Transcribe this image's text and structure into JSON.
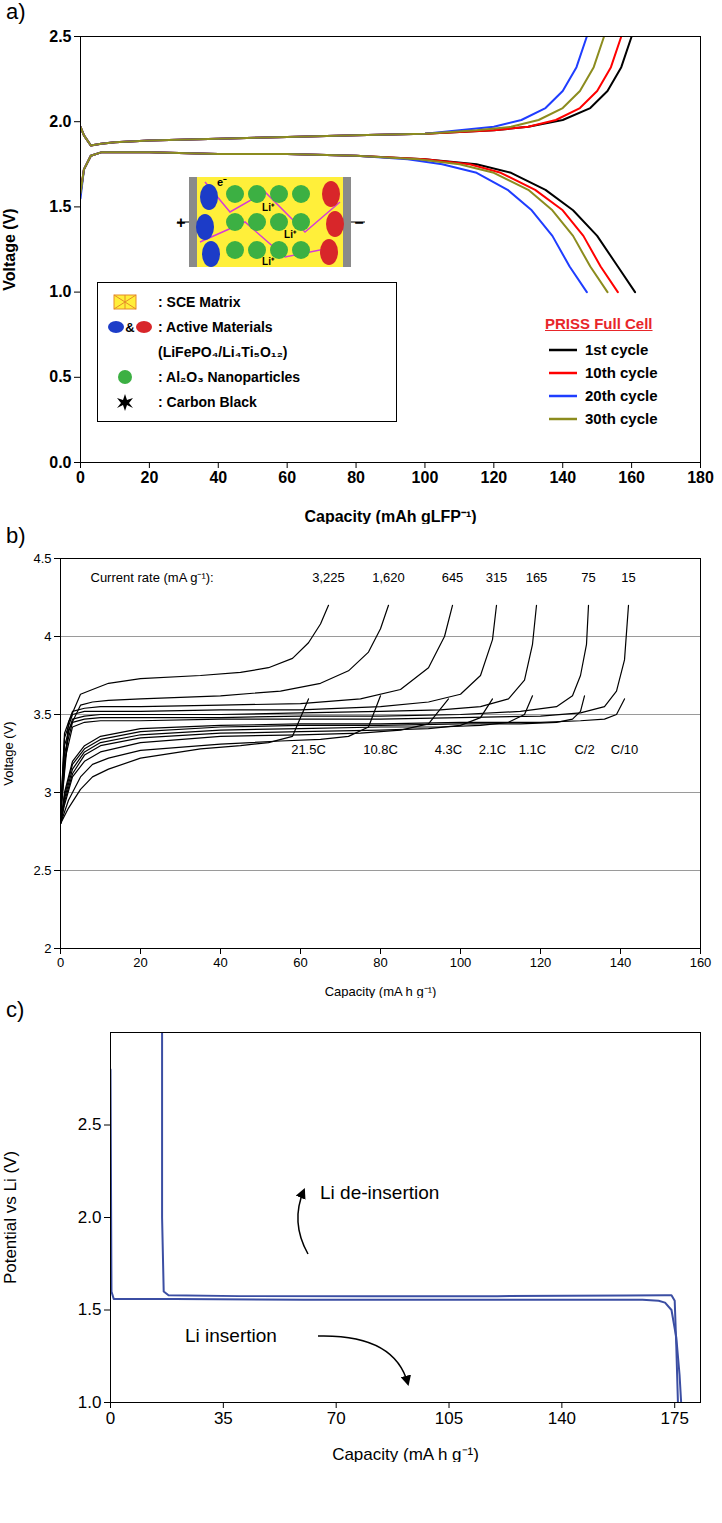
{
  "chart_data": [
    {
      "panel_label": "a)",
      "type": "line",
      "x_label": "Capacity (mAh gLFP⁻¹)",
      "y_label": "Voltage (V)",
      "xlim": [
        0,
        180
      ],
      "xticks": [
        0,
        20,
        40,
        60,
        80,
        100,
        120,
        140,
        160,
        180
      ],
      "ylim": [
        0,
        2.5
      ],
      "yticks": [
        {
          "value": 0,
          "label": "0.0"
        },
        {
          "value": 0.5,
          "label": "0.5"
        },
        {
          "value": 1,
          "label": "1.0"
        },
        {
          "value": 1.5,
          "label": "1.5"
        },
        {
          "value": 2,
          "label": "2.0"
        },
        {
          "value": 2.5,
          "label": "2.5"
        }
      ],
      "grid": false,
      "legend": "lower right",
      "legend_title": "PRISS Full Cell",
      "inset_key": [
        ": SCE Matrix",
        ": Active Materials",
        "(LiFePO₄/Li₄Ti₅O₁₂)",
        ": Al₂O₃ Nanoparticles",
        ": Carbon Black"
      ],
      "schematic_labels": {
        "electron": "e⁻",
        "ion": "Li⁺",
        "positive": "+",
        "negative": "−",
        "and_sign": "&"
      },
      "series": [
        {
          "name": "1st cycle",
          "color": "#000000",
          "x": [
            0,
            1,
            3,
            6,
            10,
            20,
            40,
            60,
            80,
            100,
            120,
            130,
            140,
            148,
            153,
            157,
            160,
            null,
            0,
            1,
            3,
            6,
            10,
            20,
            40,
            60,
            80,
            100,
            115,
            125,
            135,
            143,
            150,
            156,
            161
          ],
          "values": [
            1.97,
            1.92,
            1.86,
            1.87,
            1.88,
            1.89,
            1.9,
            1.91,
            1.92,
            1.93,
            1.95,
            1.97,
            2.01,
            2.08,
            2.18,
            2.32,
            2.5,
            null,
            1.58,
            1.72,
            1.8,
            1.82,
            1.82,
            1.82,
            1.81,
            1.81,
            1.8,
            1.78,
            1.75,
            1.7,
            1.6,
            1.48,
            1.33,
            1.15,
            1.0
          ]
        },
        {
          "name": "10th cycle",
          "color": "#ff0000",
          "x": [
            0,
            1,
            3,
            6,
            10,
            20,
            40,
            60,
            80,
            100,
            120,
            130,
            138,
            145,
            150,
            154,
            157,
            null,
            0,
            1,
            3,
            6,
            10,
            20,
            40,
            60,
            80,
            100,
            113,
            122,
            132,
            140,
            146,
            151,
            156
          ],
          "values": [
            1.97,
            1.92,
            1.86,
            1.87,
            1.88,
            1.89,
            1.9,
            1.91,
            1.92,
            1.93,
            1.95,
            1.97,
            2.01,
            2.08,
            2.18,
            2.32,
            2.5,
            null,
            1.58,
            1.72,
            1.8,
            1.82,
            1.82,
            1.82,
            1.81,
            1.81,
            1.8,
            1.78,
            1.75,
            1.7,
            1.6,
            1.48,
            1.33,
            1.15,
            1.0
          ]
        },
        {
          "name": "20th cycle",
          "color": "#1f3dff",
          "x": [
            0,
            1,
            3,
            6,
            10,
            20,
            40,
            60,
            80,
            100,
            110,
            120,
            128,
            135,
            140,
            144,
            147,
            null,
            0,
            1,
            3,
            6,
            10,
            20,
            40,
            60,
            80,
            95,
            105,
            115,
            124,
            131,
            137,
            142,
            147
          ],
          "values": [
            1.97,
            1.92,
            1.86,
            1.87,
            1.88,
            1.89,
            1.9,
            1.91,
            1.92,
            1.93,
            1.95,
            1.97,
            2.01,
            2.08,
            2.18,
            2.32,
            2.5,
            null,
            1.55,
            1.72,
            1.8,
            1.82,
            1.82,
            1.82,
            1.81,
            1.81,
            1.8,
            1.78,
            1.75,
            1.7,
            1.6,
            1.48,
            1.33,
            1.15,
            1.0
          ]
        },
        {
          "name": "30th cycle",
          "color": "#8c8c1e",
          "x": [
            0,
            1,
            3,
            6,
            10,
            20,
            40,
            60,
            80,
            100,
            115,
            125,
            133,
            140,
            145,
            149,
            152,
            null,
            0,
            1,
            3,
            6,
            10,
            20,
            40,
            60,
            80,
            98,
            110,
            120,
            130,
            137,
            143,
            148,
            153
          ],
          "values": [
            1.97,
            1.92,
            1.86,
            1.87,
            1.88,
            1.89,
            1.9,
            1.91,
            1.92,
            1.93,
            1.95,
            1.97,
            2.01,
            2.08,
            2.18,
            2.32,
            2.5,
            null,
            1.58,
            1.72,
            1.8,
            1.82,
            1.82,
            1.82,
            1.81,
            1.81,
            1.8,
            1.78,
            1.75,
            1.7,
            1.6,
            1.48,
            1.33,
            1.15,
            1.0
          ]
        }
      ]
    },
    {
      "panel_label": "b)",
      "type": "line",
      "x_label": "Capacity (mA h g⁻¹)",
      "y_label": "Voltage (V)",
      "xlim": [
        0,
        160
      ],
      "xticks": [
        0,
        20,
        40,
        60,
        80,
        100,
        120,
        140,
        160
      ],
      "ylim": [
        2,
        4.5
      ],
      "yticks": [
        2,
        2.5,
        3,
        3.5,
        4,
        4.5
      ],
      "grid": true,
      "color": "#000000",
      "rate_heading": "Current rate (mA g⁻¹):",
      "series": [
        {
          "name": "21.5C",
          "current_rate": {
            "value": 3225,
            "label": "3,225"
          },
          "x": [
            0,
            2,
            5,
            8,
            12,
            20,
            35,
            45,
            52,
            58,
            62,
            65,
            67,
            null,
            0,
            2,
            5,
            8,
            12,
            20,
            35,
            45,
            52,
            58,
            62
          ],
          "values": [
            2.85,
            3.45,
            3.63,
            3.66,
            3.7,
            3.73,
            3.75,
            3.77,
            3.8,
            3.86,
            3.96,
            4.08,
            4.2,
            null,
            2.8,
            2.9,
            3.02,
            3.1,
            3.15,
            3.22,
            3.28,
            3.3,
            3.32,
            3.36,
            3.6
          ]
        },
        {
          "name": "10.8C",
          "current_rate": {
            "value": 1620,
            "label": "1,620"
          },
          "x": [
            0,
            2,
            5,
            8,
            12,
            20,
            40,
            55,
            65,
            72,
            77,
            80,
            82,
            null,
            0,
            2,
            5,
            8,
            12,
            20,
            40,
            55,
            65,
            72,
            77,
            80
          ],
          "values": [
            2.85,
            3.4,
            3.56,
            3.58,
            3.59,
            3.6,
            3.62,
            3.65,
            3.7,
            3.78,
            3.9,
            4.05,
            4.2,
            null,
            2.8,
            2.95,
            3.1,
            3.18,
            3.22,
            3.27,
            3.31,
            3.33,
            3.34,
            3.36,
            3.42,
            3.62
          ]
        },
        {
          "name": "4.3C",
          "current_rate": 645,
          "x": [
            0,
            1,
            3,
            6,
            10,
            20,
            40,
            60,
            75,
            85,
            92,
            96,
            98,
            null,
            0,
            1,
            3,
            6,
            10,
            20,
            40,
            60,
            75,
            85,
            92,
            97
          ],
          "values": [
            2.85,
            3.38,
            3.52,
            3.54,
            3.55,
            3.55,
            3.56,
            3.57,
            3.6,
            3.66,
            3.8,
            4.0,
            4.2,
            null,
            2.8,
            2.92,
            3.1,
            3.2,
            3.26,
            3.32,
            3.36,
            3.37,
            3.38,
            3.4,
            3.44,
            3.6
          ]
        },
        {
          "name": "2.1C",
          "current_rate": 315,
          "x": [
            0,
            1,
            3,
            6,
            10,
            20,
            40,
            60,
            80,
            92,
            100,
            105,
            108,
            109,
            null,
            0,
            1,
            3,
            6,
            10,
            20,
            40,
            60,
            80,
            92,
            100,
            105,
            108
          ],
          "values": [
            2.85,
            3.35,
            3.5,
            3.52,
            3.52,
            3.52,
            3.53,
            3.53,
            3.55,
            3.58,
            3.63,
            3.75,
            3.98,
            4.2,
            null,
            2.8,
            2.94,
            3.12,
            3.24,
            3.3,
            3.35,
            3.38,
            3.39,
            3.4,
            3.41,
            3.43,
            3.48,
            3.6
          ]
        },
        {
          "name": "1.1C",
          "current_rate": 165,
          "x": [
            0,
            1,
            3,
            6,
            10,
            20,
            40,
            60,
            80,
            95,
            105,
            112,
            116,
            118,
            119,
            null,
            0,
            1,
            3,
            6,
            10,
            20,
            40,
            60,
            80,
            95,
            105,
            112,
            116,
            118
          ],
          "values": [
            2.85,
            3.3,
            3.47,
            3.49,
            3.5,
            3.5,
            3.5,
            3.51,
            3.52,
            3.53,
            3.55,
            3.6,
            3.72,
            3.95,
            4.2,
            null,
            2.8,
            2.96,
            3.15,
            3.26,
            3.32,
            3.37,
            3.4,
            3.41,
            3.42,
            3.42,
            3.43,
            3.45,
            3.5,
            3.62
          ]
        },
        {
          "name": "C/2",
          "current_rate": 75,
          "x": [
            0,
            1,
            3,
            6,
            10,
            20,
            40,
            60,
            80,
            100,
            115,
            124,
            128,
            130,
            131.5,
            132,
            null,
            0,
            1,
            3,
            6,
            10,
            20,
            40,
            60,
            80,
            100,
            115,
            124,
            128,
            130,
            131
          ],
          "values": [
            2.85,
            3.25,
            3.45,
            3.47,
            3.48,
            3.48,
            3.48,
            3.49,
            3.49,
            3.5,
            3.52,
            3.55,
            3.62,
            3.75,
            3.95,
            4.2,
            null,
            2.8,
            2.98,
            3.18,
            3.28,
            3.34,
            3.39,
            3.42,
            3.43,
            3.43,
            3.44,
            3.44,
            3.45,
            3.47,
            3.52,
            3.62
          ]
        },
        {
          "name": "C/10",
          "current_rate": 15,
          "x": [
            0,
            1,
            3,
            6,
            10,
            20,
            40,
            60,
            80,
            100,
            120,
            130,
            136,
            139,
            141,
            142,
            null,
            0,
            1,
            3,
            6,
            10,
            20,
            40,
            60,
            80,
            100,
            120,
            130,
            136,
            139,
            141
          ],
          "values": [
            2.85,
            3.2,
            3.42,
            3.45,
            3.46,
            3.46,
            3.47,
            3.47,
            3.47,
            3.48,
            3.49,
            3.51,
            3.55,
            3.65,
            3.85,
            4.2,
            null,
            2.8,
            3.0,
            3.2,
            3.3,
            3.36,
            3.41,
            3.43,
            3.44,
            3.44,
            3.45,
            3.45,
            3.46,
            3.47,
            3.5,
            3.6
          ]
        }
      ]
    },
    {
      "panel_label": "c)",
      "type": "line",
      "x_label": "Capacity (mA h g⁻¹)",
      "y_label": "Potential vs Li (V)",
      "xlim": [
        0,
        183
      ],
      "xticks": [
        0,
        35,
        70,
        105,
        140,
        175
      ],
      "ylim": [
        1,
        3
      ],
      "yticks": [
        {
          "value": 1,
          "label": "1.0"
        },
        {
          "value": 1.5,
          "label": "1.5"
        },
        {
          "value": 2,
          "label": "2.0"
        },
        {
          "value": 2.5,
          "label": "2.5"
        }
      ],
      "grid": false,
      "color": "#3b4ea3",
      "annotations": [
        "Li de-insertion",
        "Li insertion"
      ],
      "series": [
        {
          "x": [
            0,
            0.3,
            1,
            20,
            60,
            100,
            140,
            165,
            170,
            172,
            174,
            175.5,
            176.5,
            177
          ],
          "values": [
            2.8,
            1.6,
            1.56,
            1.56,
            1.555,
            1.555,
            1.555,
            1.555,
            1.55,
            1.54,
            1.5,
            1.35,
            1.15,
            1.0
          ]
        },
        {
          "x": [
            16,
            16,
            16.5,
            18,
            40,
            80,
            120,
            160,
            172,
            174,
            175,
            175.5,
            176
          ],
          "values": [
            3.0,
            2.0,
            1.6,
            1.58,
            1.575,
            1.575,
            1.575,
            1.578,
            1.58,
            1.58,
            1.55,
            1.3,
            1.0
          ]
        }
      ]
    }
  ]
}
